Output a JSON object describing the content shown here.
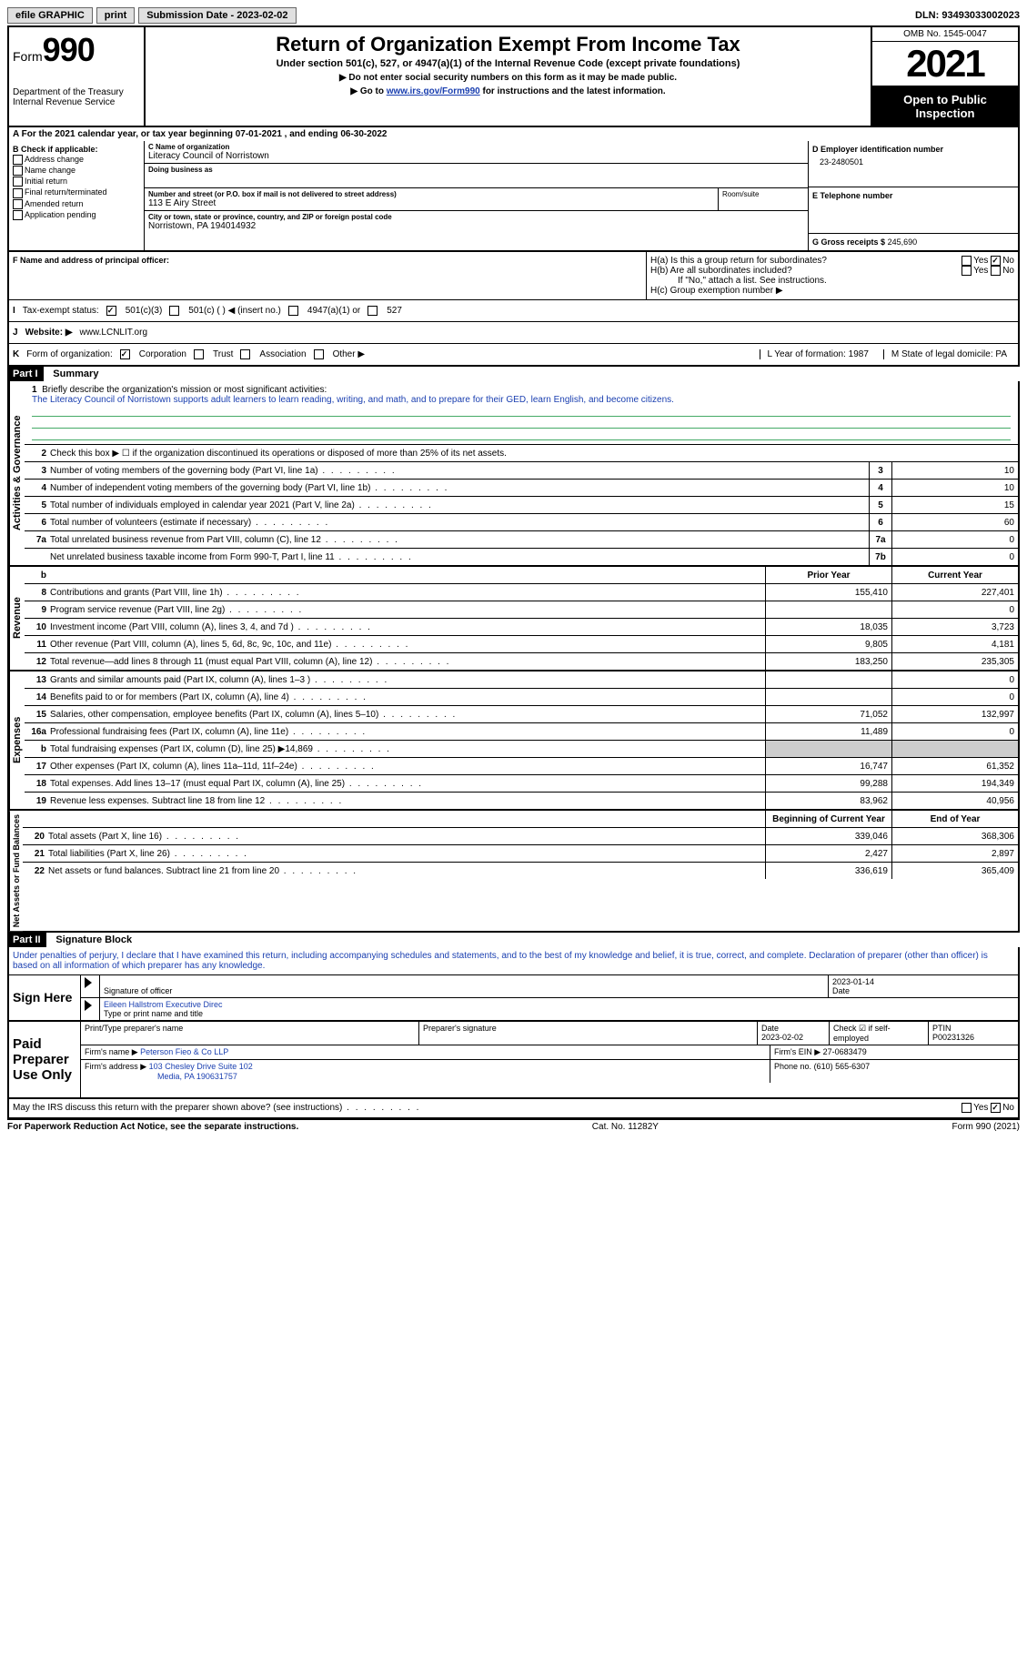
{
  "topbar": {
    "efile": "efile GRAPHIC",
    "print": "print",
    "sub_label": "Submission Date - 2023-02-02",
    "dln": "DLN: 93493033002023"
  },
  "header": {
    "form": "Form",
    "form_num": "990",
    "title": "Return of Organization Exempt From Income Tax",
    "subtitle": "Under section 501(c), 527, or 4947(a)(1) of the Internal Revenue Code (except private foundations)",
    "note1": "▶ Do not enter social security numbers on this form as it may be made public.",
    "note2_pre": "▶ Go to ",
    "note2_link": "www.irs.gov/Form990",
    "note2_post": " for instructions and the latest information.",
    "dept": "Department of the Treasury",
    "irs": "Internal Revenue Service",
    "omb": "OMB No. 1545-0047",
    "year": "2021",
    "open": "Open to Public Inspection"
  },
  "line_a": "A For the 2021 calendar year, or tax year beginning 07-01-2021   , and ending 06-30-2022",
  "section_b": {
    "b_label": "B Check if applicable:",
    "opts": [
      "Address change",
      "Name change",
      "Initial return",
      "Final return/terminated",
      "Amended return",
      "Application pending"
    ],
    "c_label": "C Name of organization",
    "c_name": "Literacy Council of Norristown",
    "dba_label": "Doing business as",
    "addr_label": "Number and street (or P.O. box if mail is not delivered to street address)",
    "room_label": "Room/suite",
    "addr": "113 E Airy Street",
    "city_label": "City or town, state or province, country, and ZIP or foreign postal code",
    "city": "Norristown, PA  194014932",
    "d_label": "D Employer identification number",
    "ein": "23-2480501",
    "e_label": "E Telephone number",
    "g_label": "G Gross receipts $",
    "g_val": "245,690"
  },
  "section_f": {
    "f_label": "F Name and address of principal officer:",
    "ha": "H(a)  Is this a group return for subordinates?",
    "hb": "H(b)  Are all subordinates included?",
    "hb_note": "If \"No,\" attach a list. See instructions.",
    "hc": "H(c)  Group exemption number ▶"
  },
  "tax_status": {
    "i": "I",
    "label": "Tax-exempt status:",
    "o1": "501(c)(3)",
    "o2": "501(c) (  ) ◀ (insert no.)",
    "o3": "4947(a)(1) or",
    "o4": "527"
  },
  "website": {
    "j": "J",
    "label": "Website: ▶",
    "url": "www.LCNLIT.org"
  },
  "line_k": {
    "k": "K",
    "label": "Form of organization:",
    "corp": "Corporation",
    "trust": "Trust",
    "assoc": "Association",
    "other": "Other ▶",
    "l": "L Year of formation: 1987",
    "m": "M State of legal domicile: PA"
  },
  "part1": {
    "header": "Part I",
    "title": "Summary",
    "q1": "Briefly describe the organization's mission or most significant activities:",
    "mission": "The Literacy Council of Norristown supports adult learners to learn reading, writing, and math, and to prepare for their GED, learn English, and become citizens.",
    "q2": "Check this box ▶ ☐ if the organization discontinued its operations or disposed of more than 25% of its net assets.",
    "rows_gov": [
      {
        "n": "3",
        "d": "Number of voting members of the governing body (Part VI, line 1a)",
        "b": "3",
        "v": "10"
      },
      {
        "n": "4",
        "d": "Number of independent voting members of the governing body (Part VI, line 1b)",
        "b": "4",
        "v": "10"
      },
      {
        "n": "5",
        "d": "Total number of individuals employed in calendar year 2021 (Part V, line 2a)",
        "b": "5",
        "v": "15"
      },
      {
        "n": "6",
        "d": "Total number of volunteers (estimate if necessary)",
        "b": "6",
        "v": "60"
      },
      {
        "n": "7a",
        "d": "Total unrelated business revenue from Part VIII, column (C), line 12",
        "b": "7a",
        "v": "0"
      },
      {
        "n": "",
        "d": "Net unrelated business taxable income from Form 990-T, Part I, line 11",
        "b": "7b",
        "v": "0"
      }
    ],
    "prior_hdr": "Prior Year",
    "curr_hdr": "Current Year",
    "rows_rev": [
      {
        "n": "8",
        "d": "Contributions and grants (Part VIII, line 1h)",
        "p": "155,410",
        "c": "227,401"
      },
      {
        "n": "9",
        "d": "Program service revenue (Part VIII, line 2g)",
        "p": "",
        "c": "0"
      },
      {
        "n": "10",
        "d": "Investment income (Part VIII, column (A), lines 3, 4, and 7d )",
        "p": "18,035",
        "c": "3,723"
      },
      {
        "n": "11",
        "d": "Other revenue (Part VIII, column (A), lines 5, 6d, 8c, 9c, 10c, and 11e)",
        "p": "9,805",
        "c": "4,181"
      },
      {
        "n": "12",
        "d": "Total revenue—add lines 8 through 11 (must equal Part VIII, column (A), line 12)",
        "p": "183,250",
        "c": "235,305"
      }
    ],
    "rows_exp": [
      {
        "n": "13",
        "d": "Grants and similar amounts paid (Part IX, column (A), lines 1–3 )",
        "p": "",
        "c": "0"
      },
      {
        "n": "14",
        "d": "Benefits paid to or for members (Part IX, column (A), line 4)",
        "p": "",
        "c": "0"
      },
      {
        "n": "15",
        "d": "Salaries, other compensation, employee benefits (Part IX, column (A), lines 5–10)",
        "p": "71,052",
        "c": "132,997"
      },
      {
        "n": "16a",
        "d": "Professional fundraising fees (Part IX, column (A), line 11e)",
        "p": "11,489",
        "c": "0"
      },
      {
        "n": "b",
        "d": "Total fundraising expenses (Part IX, column (D), line 25) ▶14,869",
        "p": "GRAY",
        "c": "GRAY"
      },
      {
        "n": "17",
        "d": "Other expenses (Part IX, column (A), lines 11a–11d, 11f–24e)",
        "p": "16,747",
        "c": "61,352"
      },
      {
        "n": "18",
        "d": "Total expenses. Add lines 13–17 (must equal Part IX, column (A), line 25)",
        "p": "99,288",
        "c": "194,349"
      },
      {
        "n": "19",
        "d": "Revenue less expenses. Subtract line 18 from line 12",
        "p": "83,962",
        "c": "40,956"
      }
    ],
    "begin_hdr": "Beginning of Current Year",
    "end_hdr": "End of Year",
    "rows_net": [
      {
        "n": "20",
        "d": "Total assets (Part X, line 16)",
        "p": "339,046",
        "c": "368,306"
      },
      {
        "n": "21",
        "d": "Total liabilities (Part X, line 26)",
        "p": "2,427",
        "c": "2,897"
      },
      {
        "n": "22",
        "d": "Net assets or fund balances. Subtract line 21 from line 20",
        "p": "336,619",
        "c": "365,409"
      }
    ],
    "side_gov": "Activities & Governance",
    "side_rev": "Revenue",
    "side_exp": "Expenses",
    "side_net": "Net Assets or Fund Balances"
  },
  "part2": {
    "header": "Part II",
    "title": "Signature Block",
    "declaration": "Under penalties of perjury, I declare that I have examined this return, including accompanying schedules and statements, and to the best of my knowledge and belief, it is true, correct, and complete. Declaration of preparer (other than officer) is based on all information of which preparer has any knowledge.",
    "sign_here": "Sign Here",
    "sig_officer": "Signature of officer",
    "sig_date": "2023-01-14",
    "date_lbl": "Date",
    "name_title": "Eileen Hallstrom  Executive Direc",
    "name_lbl": "Type or print name and title",
    "paid": "Paid Preparer Use Only",
    "prep_name_lbl": "Print/Type preparer's name",
    "prep_sig_lbl": "Preparer's signature",
    "prep_date_lbl": "Date",
    "prep_date": "2023-02-02",
    "check_lbl": "Check ☑ if self-employed",
    "ptin_lbl": "PTIN",
    "ptin": "P00231326",
    "firm_name_lbl": "Firm's name    ▶",
    "firm_name": "Peterson Fieo & Co LLP",
    "firm_ein_lbl": "Firm's EIN ▶",
    "firm_ein": "27-0683479",
    "firm_addr_lbl": "Firm's address ▶",
    "firm_addr": "103 Chesley Drive Suite 102",
    "firm_city": "Media, PA  190631757",
    "phone_lbl": "Phone no.",
    "phone": "(610) 565-6307",
    "discuss": "May the IRS discuss this return with the preparer shown above? (see instructions)"
  },
  "footer": {
    "left": "For Paperwork Reduction Act Notice, see the separate instructions.",
    "mid": "Cat. No. 11282Y",
    "right": "Form 990 (2021)"
  }
}
